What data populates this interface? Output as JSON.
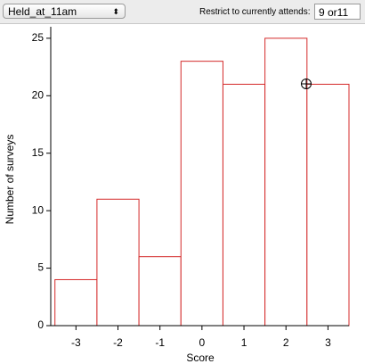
{
  "toolbar": {
    "dropdown": "Held_at_11am",
    "restrict_label": "Restrict to currently attends:",
    "restrict_value": "9 or11"
  },
  "chart_data": {
    "type": "histogram",
    "xlabel": "Score",
    "ylabel": "Number of surveys",
    "bins": [
      -3.5,
      -2.5,
      -1.5,
      -0.5,
      0.5,
      1.5,
      2.5,
      3.5
    ],
    "values": [
      4,
      11,
      6,
      23,
      21,
      25,
      21
    ],
    "color": "#d42a2a",
    "xlim": [
      -3.6,
      3.5
    ],
    "xticks": [
      -3,
      -2,
      -1,
      0,
      1,
      2,
      3
    ],
    "ylim": [
      0,
      26
    ],
    "yticks": [
      0,
      5,
      10,
      15,
      20,
      25
    ]
  }
}
